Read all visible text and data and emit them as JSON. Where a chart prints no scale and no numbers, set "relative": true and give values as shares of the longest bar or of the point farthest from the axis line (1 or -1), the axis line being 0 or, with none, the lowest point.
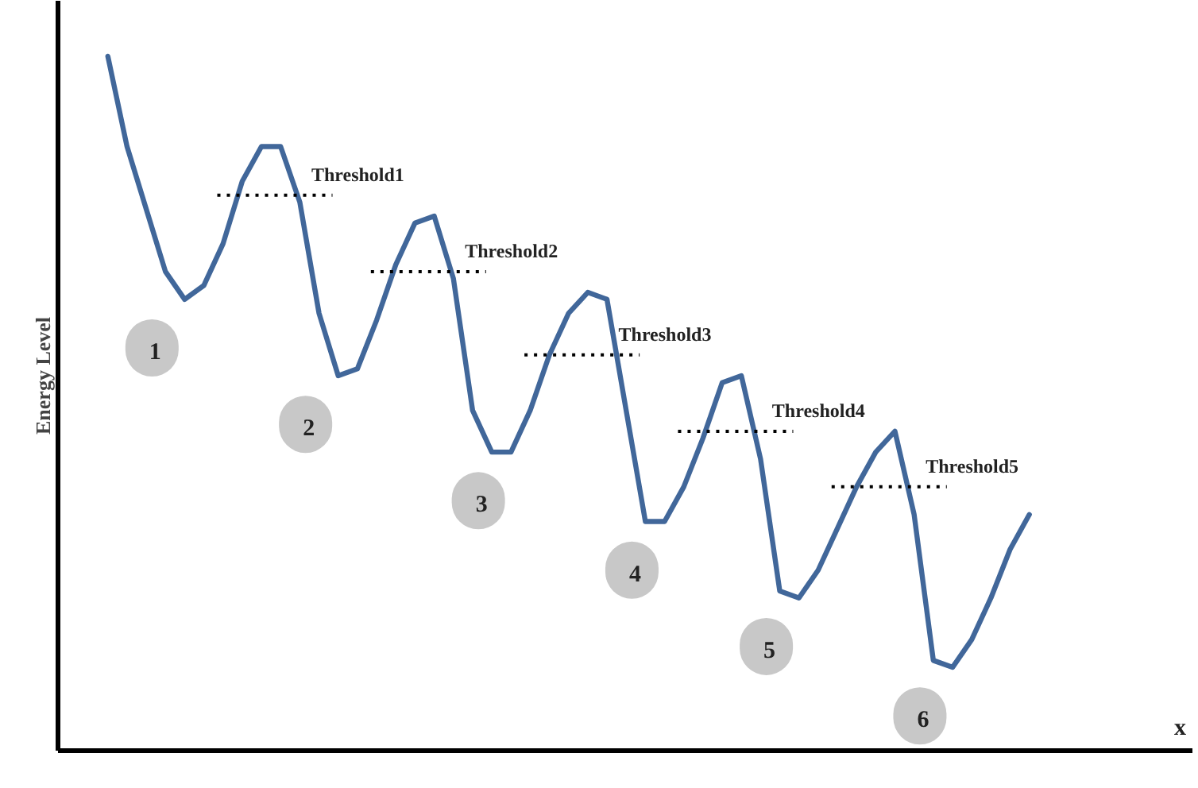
{
  "chart_data": {
    "type": "line",
    "ylabel": "Energy Level",
    "relative": true,
    "categories": [
      null,
      null,
      null,
      null,
      null,
      null,
      null,
      null,
      null,
      null,
      null,
      null,
      null,
      null,
      null,
      null,
      null,
      null,
      null,
      null,
      null,
      null,
      null,
      null,
      null,
      null,
      null,
      null,
      null,
      null,
      null,
      null,
      null,
      null,
      null,
      null,
      null,
      null,
      null,
      null,
      null,
      null,
      null,
      null,
      null,
      null,
      null,
      null,
      null
    ],
    "series": [
      {
        "color": "#41679a",
        "line_style": "solid",
        "values": [
          1.0,
          0.87,
          0.78,
          0.69,
          0.65,
          0.67,
          0.73,
          0.82,
          0.87,
          0.87,
          0.79,
          0.63,
          0.54,
          0.55,
          0.62,
          0.7,
          0.76,
          0.77,
          0.68,
          0.49,
          0.43,
          0.43,
          0.49,
          0.57,
          0.63,
          0.66,
          0.65,
          0.49,
          0.33,
          0.33,
          0.38,
          0.45,
          0.53,
          0.54,
          0.42,
          0.23,
          0.22,
          0.26,
          0.32,
          0.38,
          0.43,
          0.46,
          0.34,
          0.13,
          0.12,
          0.16,
          0.22,
          0.29,
          0.34
        ]
      }
    ],
    "ref_lines": [
      {
        "axis": "y",
        "value": 0.8,
        "label": "Threshold1",
        "color": "#000000",
        "line_style": "dotted"
      },
      {
        "axis": "y",
        "value": 0.69,
        "label": "Threshold2",
        "color": "#000000",
        "line_style": "dotted"
      },
      {
        "axis": "y",
        "value": 0.57,
        "label": "Threshold3",
        "color": "#000000",
        "line_style": "dotted"
      },
      {
        "axis": "y",
        "value": 0.46,
        "label": "Threshold4",
        "color": "#000000",
        "line_style": "dotted"
      },
      {
        "axis": "y",
        "value": 0.38,
        "label": "Threshold5",
        "color": "#000000",
        "line_style": "dotted"
      }
    ],
    "annotations": [
      "1",
      "2",
      "3",
      "4",
      "5",
      "6",
      {
        "text": "x"
      }
    ]
  }
}
